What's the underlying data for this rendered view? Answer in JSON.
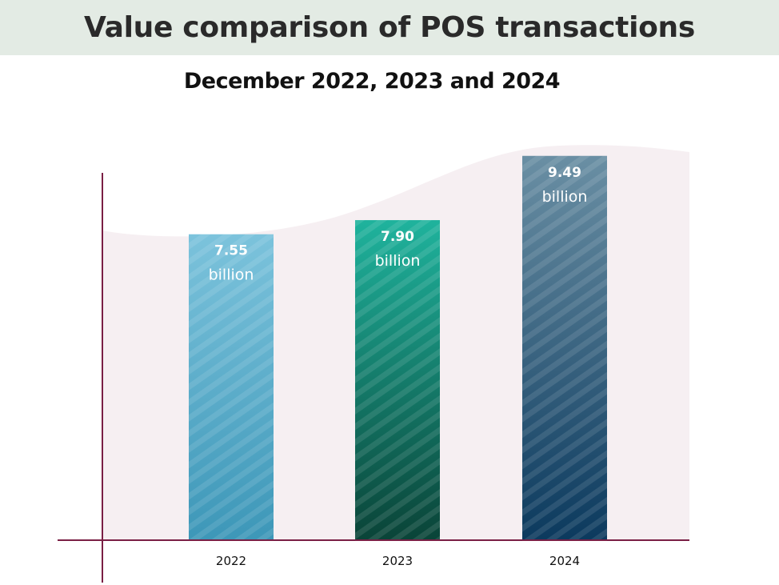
{
  "chart_data": {
    "type": "bar",
    "title": "Value comparison of POS transactions",
    "subtitle": "December 2022, 2023 and 2024",
    "categories": [
      "2022",
      "2023",
      "2024"
    ],
    "values": [
      7.55,
      7.9,
      9.49
    ],
    "value_labels": [
      "7.55",
      "7.90",
      "9.49"
    ],
    "unit": "billion",
    "ylim": [
      0,
      10
    ],
    "colors": {
      "bar_2022": [
        "#7cc3dc",
        "#3d97b8"
      ],
      "bar_2023": [
        "#1fb39d",
        "#0a4438"
      ],
      "bar_2024": [
        "#6a8fa4",
        "#0c3a5e"
      ],
      "axis": "#7a1f45",
      "backdrop": "#f6eff2"
    }
  }
}
